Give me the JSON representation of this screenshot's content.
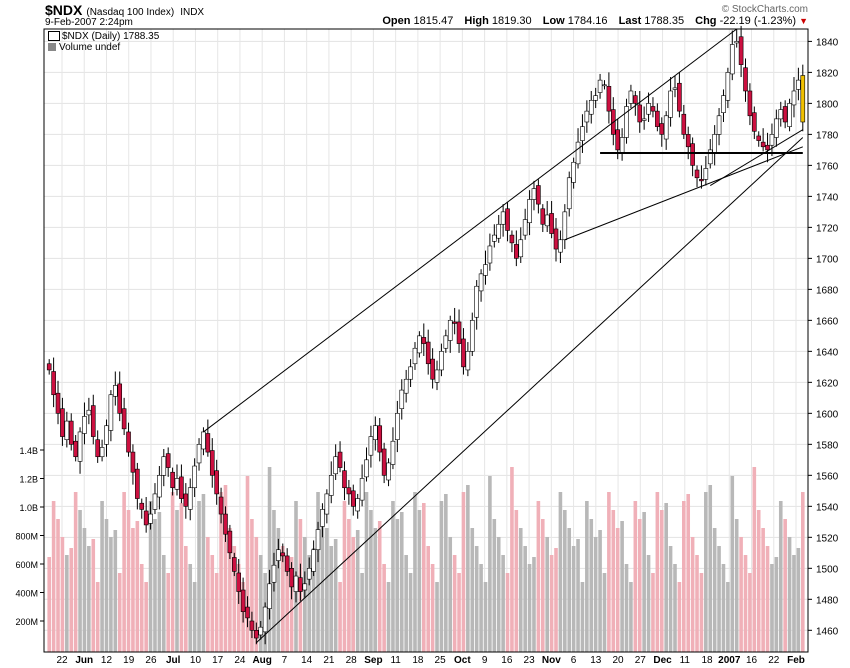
{
  "header": {
    "symbol": "$NDX",
    "name": "(Nasdaq 100 Index)",
    "exchange": "INDX",
    "datetime": "9-Feb-2007 2:24pm",
    "copyright": "© StockCharts.com",
    "open_label": "Open",
    "open": "1815.47",
    "high_label": "High",
    "high": "1819.30",
    "low_label": "Low",
    "low": "1784.16",
    "last_label": "Last",
    "last": "1788.35",
    "chg_label": "Chg",
    "chg": "-22.19 (-1.23%)"
  },
  "legend": {
    "price": "$NDX (Daily) 1788.35",
    "volume": "Volume undef"
  },
  "colors": {
    "up": "#ffffff",
    "down": "#cc1040",
    "volUp": "#b8b8b8",
    "volDown": "#f0b0b8",
    "highlight": "#f0c000"
  },
  "chart_data": {
    "type": "candlestick",
    "title": "$NDX (Nasdaq 100 Index) Daily",
    "ylim": [
      1446,
      1848
    ],
    "yticks": [
      1460,
      1480,
      1500,
      1520,
      1540,
      1560,
      1580,
      1600,
      1620,
      1640,
      1660,
      1680,
      1700,
      1720,
      1740,
      1760,
      1780,
      1800,
      1820,
      1840
    ],
    "volume_ticks": [
      "200M",
      "400M",
      "600M",
      "800M",
      "1.0B",
      "1.2B",
      "1.4B"
    ],
    "x_labels": [
      "22",
      "Jun",
      "12",
      "19",
      "26",
      "Jul",
      "10",
      "17",
      "24",
      "Aug",
      "7",
      "14",
      "21",
      "28",
      "Sep",
      "11",
      "18",
      "25",
      "Oct",
      "9",
      "16",
      "23",
      "Nov",
      "6",
      "13",
      "20",
      "27",
      "Dec",
      "11",
      "18",
      "2007",
      "16",
      "22",
      "Feb"
    ],
    "bold_x_labels": [
      "Jun",
      "Jul",
      "Aug",
      "Sep",
      "Oct",
      "Nov",
      "Dec",
      "2007",
      "Feb"
    ],
    "close_series": [
      1628,
      1612,
      1600,
      1585,
      1595,
      1580,
      1572,
      1588,
      1598,
      1602,
      1585,
      1572,
      1578,
      1592,
      1612,
      1618,
      1600,
      1590,
      1575,
      1562,
      1545,
      1538,
      1528,
      1535,
      1548,
      1560,
      1572,
      1565,
      1552,
      1558,
      1545,
      1540,
      1552,
      1566,
      1580,
      1588,
      1575,
      1560,
      1548,
      1535,
      1522,
      1510,
      1498,
      1485,
      1472,
      1468,
      1460,
      1455,
      1462,
      1475,
      1490,
      1502,
      1512,
      1508,
      1498,
      1488,
      1495,
      1485,
      1490,
      1500,
      1512,
      1525,
      1538,
      1548,
      1560,
      1572,
      1565,
      1552,
      1548,
      1540,
      1545,
      1558,
      1570,
      1585,
      1592,
      1575,
      1560,
      1568,
      1582,
      1600,
      1615,
      1622,
      1630,
      1642,
      1650,
      1645,
      1632,
      1622,
      1628,
      1640,
      1650,
      1660,
      1658,
      1645,
      1630,
      1640,
      1660,
      1682,
      1690,
      1696,
      1708,
      1715,
      1722,
      1730,
      1718,
      1710,
      1700,
      1712,
      1725,
      1738,
      1745,
      1735,
      1722,
      1728,
      1716,
      1706,
      1712,
      1730,
      1752,
      1762,
      1775,
      1785,
      1795,
      1802,
      1805,
      1815,
      1812,
      1795,
      1780,
      1770,
      1778,
      1798,
      1808,
      1800,
      1788,
      1790,
      1800,
      1795,
      1785,
      1780,
      1792,
      1808,
      1810,
      1795,
      1780,
      1772,
      1760,
      1752,
      1750,
      1758,
      1770,
      1780,
      1792,
      1805,
      1820,
      1838,
      1840,
      1825,
      1808,
      1792,
      1782,
      1776,
      1772,
      1770,
      1780,
      1790,
      1796,
      1788,
      1800,
      1808,
      1815,
      1788
    ]
  },
  "trendlines_label": "Trend channel and support lines"
}
